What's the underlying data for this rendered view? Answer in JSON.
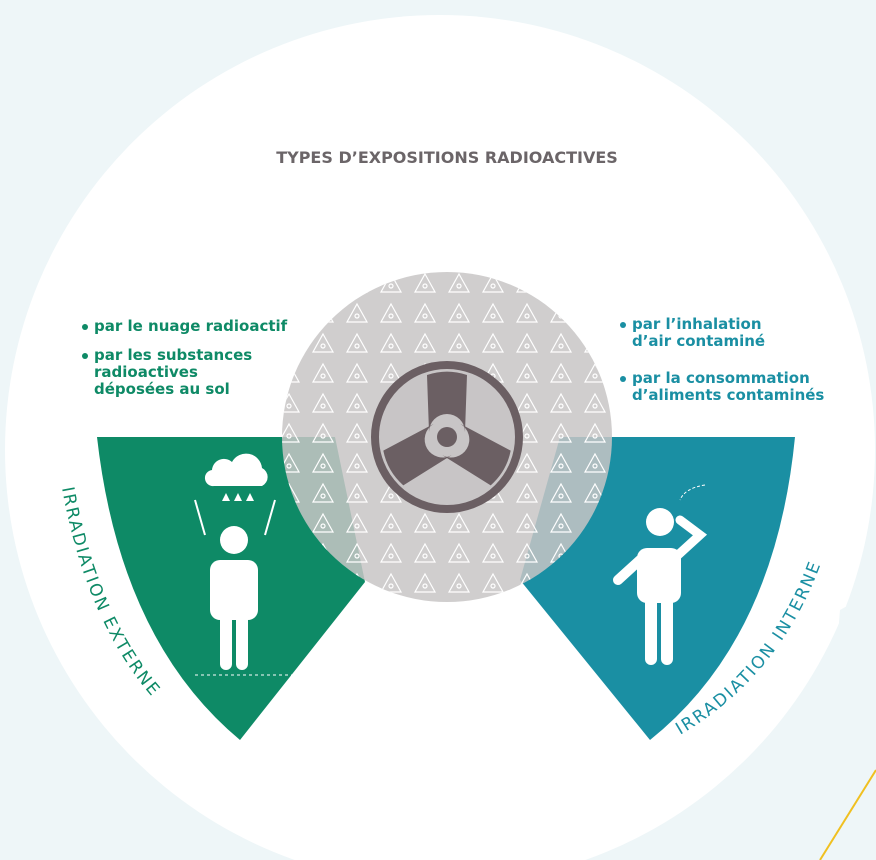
{
  "title": "TYPES D’EXPOSITIONS RADIOACTIVES",
  "left": {
    "label": "IRRADIATION EXTERNE",
    "bullets": [
      "par le nuage radioactif",
      "par les substances radioactives déposées au sol"
    ]
  },
  "right": {
    "label": "IRRADIATION INTERNE",
    "bullets": [
      "par l’inhalation d’air contaminé",
      "par la consommation d’aliments contaminés"
    ]
  }
}
